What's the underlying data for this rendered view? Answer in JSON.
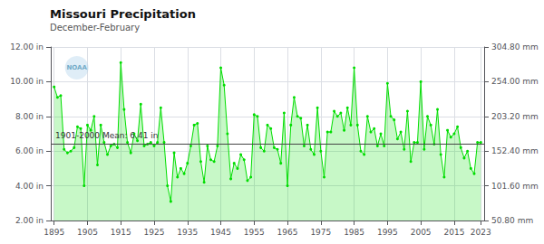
{
  "chart_data": {
    "type": "line",
    "title": "Missouri Precipitation",
    "subtitle": "December-February",
    "x": [
      1895,
      1896,
      1897,
      1898,
      1899,
      1900,
      1901,
      1902,
      1903,
      1904,
      1905,
      1906,
      1907,
      1908,
      1909,
      1910,
      1911,
      1912,
      1913,
      1914,
      1915,
      1916,
      1917,
      1918,
      1919,
      1920,
      1921,
      1922,
      1923,
      1924,
      1925,
      1926,
      1927,
      1928,
      1929,
      1930,
      1931,
      1932,
      1933,
      1934,
      1935,
      1936,
      1937,
      1938,
      1939,
      1940,
      1941,
      1942,
      1943,
      1944,
      1945,
      1946,
      1947,
      1948,
      1949,
      1950,
      1951,
      1952,
      1953,
      1954,
      1955,
      1956,
      1957,
      1958,
      1959,
      1960,
      1961,
      1962,
      1963,
      1964,
      1965,
      1966,
      1967,
      1968,
      1969,
      1970,
      1971,
      1972,
      1973,
      1974,
      1975,
      1976,
      1977,
      1978,
      1979,
      1980,
      1981,
      1982,
      1983,
      1984,
      1985,
      1986,
      1987,
      1988,
      1989,
      1990,
      1991,
      1992,
      1993,
      1994,
      1995,
      1996,
      1997,
      1998,
      1999,
      2000,
      2001,
      2002,
      2003,
      2004,
      2005,
      2006,
      2007,
      2008,
      2009,
      2010,
      2011,
      2012,
      2013,
      2014,
      2015,
      2016,
      2017,
      2018,
      2019,
      2020,
      2021,
      2022,
      2023
    ],
    "values": [
      9.7,
      9.1,
      9.2,
      6.1,
      5.9,
      6.0,
      6.2,
      7.4,
      7.3,
      4.0,
      7.5,
      7.2,
      8.0,
      5.2,
      7.5,
      6.5,
      5.8,
      6.3,
      6.4,
      6.2,
      11.1,
      8.4,
      6.5,
      5.9,
      7.0,
      6.6,
      8.7,
      6.3,
      6.4,
      6.5,
      6.3,
      6.5,
      8.5,
      6.5,
      4.0,
      3.1,
      5.9,
      4.5,
      5.0,
      4.7,
      5.3,
      6.3,
      7.5,
      7.6,
      5.4,
      4.2,
      6.3,
      5.5,
      5.4,
      6.3,
      10.8,
      9.8,
      7.0,
      4.4,
      5.3,
      5.0,
      5.8,
      5.5,
      4.3,
      4.5,
      8.1,
      8.0,
      6.2,
      6.0,
      7.5,
      7.3,
      6.2,
      6.1,
      5.3,
      8.2,
      4.0,
      7.5,
      9.1,
      8.0,
      7.9,
      6.3,
      7.5,
      6.1,
      5.8,
      8.5,
      6.0,
      4.5,
      7.1,
      7.1,
      8.3,
      8.0,
      8.2,
      7.2,
      8.5,
      7.5,
      10.8,
      7.5,
      6.0,
      5.8,
      8.0,
      7.1,
      7.3,
      6.3,
      7.0,
      6.3,
      9.9,
      8.0,
      7.8,
      6.7,
      7.1,
      6.1,
      8.3,
      5.4,
      6.5,
      6.5,
      10.0,
      6.1,
      8.0,
      7.5,
      6.4,
      8.4,
      5.8,
      4.5,
      7.2,
      6.8,
      7.0,
      7.4,
      6.2,
      5.6,
      6.0,
      5.0,
      4.7,
      6.5,
      6.5
    ],
    "color": "#00dd00",
    "marker": "circle",
    "xlim": [
      1894,
      2024
    ],
    "xticks": [
      1895,
      1905,
      1915,
      1925,
      1935,
      1945,
      1955,
      1965,
      1975,
      1985,
      1995,
      2005,
      2015,
      2023
    ],
    "ylim": [
      2.0,
      12.0
    ],
    "yticks": [
      {
        "value": 2.0,
        "label": "2.00 in"
      },
      {
        "value": 4.0,
        "label": "4.00 in"
      },
      {
        "value": 6.0,
        "label": "6.00 in"
      },
      {
        "value": 8.0,
        "label": "8.00 in"
      },
      {
        "value": 10.0,
        "label": "10.00 in"
      },
      {
        "value": 12.0,
        "label": "12.00 in"
      }
    ],
    "y2lim": [
      2.0,
      12.0
    ],
    "y2ticks": [
      {
        "value": 2.0,
        "label": "50.80 mm"
      },
      {
        "value": 4.0,
        "label": "101.60 mm"
      },
      {
        "value": 6.0,
        "label": "152.40 mm"
      },
      {
        "value": 8.0,
        "label": "203.20 mm"
      },
      {
        "value": 10.0,
        "label": "254.00 mm"
      },
      {
        "value": 12.0,
        "label": "304.80 mm"
      }
    ],
    "hlines": [
      {
        "y": 6.41,
        "label": "1901-2000 Mean: 6.41 in",
        "color": "#444444"
      }
    ],
    "annotations": [
      "NOAA"
    ],
    "grid": true
  }
}
